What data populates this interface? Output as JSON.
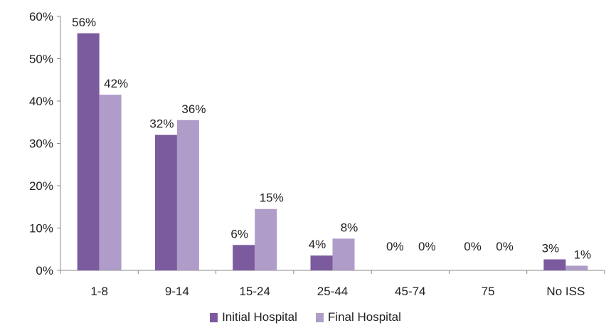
{
  "chart_data": {
    "type": "bar",
    "categories": [
      "1-8",
      "9-14",
      "15-24",
      "25-44",
      "45-74",
      "75",
      "No ISS"
    ],
    "series": [
      {
        "name": "Initial Hospital",
        "values": [
          56,
          32,
          6,
          3.5,
          0,
          0,
          2.6
        ],
        "labels": [
          "56%",
          "32%",
          "6%",
          "4%",
          "0%",
          "0%",
          "3%"
        ],
        "color": "#7b5b9e"
      },
      {
        "name": "Final Hospital",
        "values": [
          41.5,
          35.5,
          14.5,
          7.5,
          0,
          0,
          1.1
        ],
        "labels": [
          "42%",
          "36%",
          "15%",
          "8%",
          "0%",
          "0%",
          "1%"
        ],
        "color": "#b09cc8"
      }
    ],
    "ylim": [
      0,
      60
    ],
    "yticks": [
      0,
      10,
      20,
      30,
      40,
      50,
      60
    ],
    "ytick_labels": [
      "0%",
      "10%",
      "20%",
      "30%",
      "40%",
      "50%",
      "60%"
    ],
    "grid": false,
    "legend_position": "bottom",
    "title": "",
    "xlabel": "",
    "ylabel": ""
  }
}
